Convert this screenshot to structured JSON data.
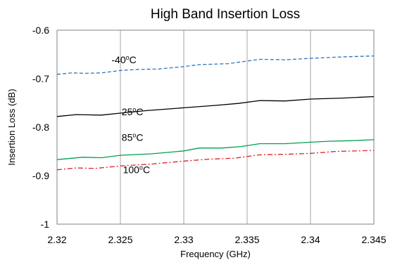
{
  "chart_data": {
    "type": "line",
    "title": "High Band Insertion Loss",
    "xlabel": "Frequency (GHz)",
    "ylabel": "Insertion Loss (dB)",
    "xlim": [
      2.32,
      2.345
    ],
    "ylim": [
      -1.0,
      -0.6
    ],
    "x_ticks": [
      2.32,
      2.325,
      2.33,
      2.335,
      2.34,
      2.345
    ],
    "x_tick_labels": [
      "2.32",
      "2.325",
      "2.33",
      "2.335",
      "2.34",
      "2.345"
    ],
    "y_ticks": [
      -0.6,
      -0.7,
      -0.8,
      -0.9,
      -1.0
    ],
    "y_tick_labels": [
      "-0.6",
      "-0.7",
      "-0.8",
      "-0.9",
      "-1"
    ],
    "grid": "vertical",
    "series": [
      {
        "name": "-40°C",
        "label_num": "-40",
        "label_sup": "o",
        "label_unit": "C",
        "color": "#2e75b6",
        "dash": "dashed",
        "label_x": 2.3243,
        "label_y": -0.668,
        "x": [
          2.32,
          2.3212,
          2.3222,
          2.3235,
          2.325,
          2.3262,
          2.328,
          2.33,
          2.3312,
          2.3335,
          2.336,
          2.338,
          2.34,
          2.3425,
          2.345
        ],
        "values": [
          -0.691,
          -0.688,
          -0.689,
          -0.688,
          -0.683,
          -0.681,
          -0.68,
          -0.675,
          -0.671,
          -0.669,
          -0.66,
          -0.661,
          -0.658,
          -0.655,
          -0.653
        ]
      },
      {
        "name": "25°C",
        "label_num": "25",
        "label_sup": "o",
        "label_unit": "C",
        "color": "#000000",
        "dash": "solid",
        "label_x": 2.3251,
        "label_y": -0.775,
        "x": [
          2.32,
          2.3215,
          2.3235,
          2.325,
          2.327,
          2.33,
          2.3325,
          2.3343,
          2.336,
          2.338,
          2.34,
          2.3425,
          2.345
        ],
        "values": [
          -0.778,
          -0.774,
          -0.775,
          -0.771,
          -0.766,
          -0.76,
          -0.755,
          -0.751,
          -0.745,
          -0.746,
          -0.742,
          -0.74,
          -0.737
        ]
      },
      {
        "name": "85°C",
        "label_num": "85",
        "label_sup": "o",
        "label_unit": "C",
        "color": "#00a050",
        "dash": "solid",
        "label_x": 2.3251,
        "label_y": -0.828,
        "x": [
          2.32,
          2.322,
          2.3235,
          2.325,
          2.3275,
          2.33,
          2.3312,
          2.333,
          2.3345,
          2.336,
          2.338,
          2.34,
          2.3415,
          2.343,
          2.345
        ],
        "values": [
          -0.867,
          -0.862,
          -0.863,
          -0.858,
          -0.855,
          -0.849,
          -0.843,
          -0.843,
          -0.84,
          -0.834,
          -0.834,
          -0.831,
          -0.829,
          -0.828,
          -0.826
        ]
      },
      {
        "name": "100°C",
        "label_num": "100",
        "label_sup": "o",
        "label_unit": "C",
        "color": "#e02020",
        "dash": "dashdot",
        "label_x": 2.3252,
        "label_y": -0.895,
        "x": [
          2.32,
          2.3215,
          2.323,
          2.325,
          2.3275,
          2.33,
          2.332,
          2.334,
          2.336,
          2.338,
          2.34,
          2.342,
          2.345
        ],
        "values": [
          -0.888,
          -0.884,
          -0.885,
          -0.88,
          -0.876,
          -0.87,
          -0.866,
          -0.864,
          -0.857,
          -0.856,
          -0.854,
          -0.85,
          -0.848
        ]
      }
    ]
  }
}
